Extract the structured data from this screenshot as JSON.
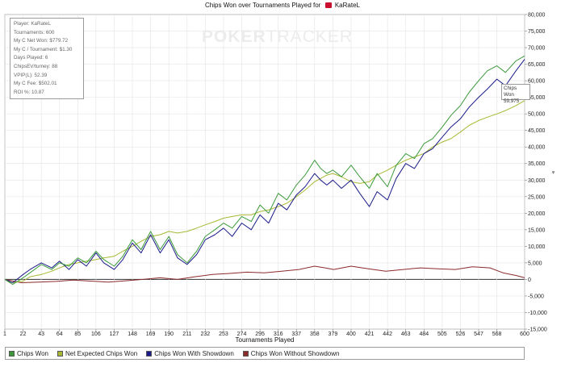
{
  "title": {
    "text": "Chips Won over Tournaments Played for",
    "player": "KaRateL",
    "flag_icon": "canada-flag-icon"
  },
  "watermark": {
    "part1": "POKER",
    "part2": "TRACKER"
  },
  "info_box": [
    "Player: KaRateL",
    "Tournaments: 600",
    "My C Net Won: $779.72",
    "My C / Tournament: $1.30",
    "Days Played: 6",
    "ChipsEV/turney: 88",
    "VPIP(L): 52.39",
    "My C Fee: $502.01",
    "ROI %: 10.87"
  ],
  "tooltip": {
    "series": "Chips Won",
    "value": "59,975"
  },
  "chart_data": {
    "type": "line",
    "title": "Chips Won over Tournaments Played for KaRateL",
    "xlabel": "Tournaments Played",
    "ylabel": "",
    "xlim": [
      1,
      600
    ],
    "ylim": [
      -15000,
      80000
    ],
    "grid": true,
    "legend_position": "bottom",
    "x_ticks": [
      1,
      22,
      43,
      64,
      85,
      106,
      127,
      148,
      169,
      190,
      211,
      232,
      253,
      274,
      295,
      316,
      337,
      358,
      379,
      400,
      421,
      442,
      463,
      484,
      505,
      526,
      547,
      568,
      600
    ],
    "y_ticks": [
      -15000,
      -10000,
      -5000,
      0,
      5000,
      10000,
      15000,
      20000,
      25000,
      30000,
      35000,
      40000,
      45000,
      50000,
      55000,
      60000,
      65000,
      70000,
      75000,
      80000
    ],
    "y_tick_labels": [
      "-15,000",
      "-10,000",
      "-5,000",
      "0",
      "5,000",
      "10,000",
      "15,000",
      "20,000",
      "25,000",
      "30,000",
      "35,000",
      "40,000",
      "45,000",
      "50,000",
      "55,000",
      "60,000",
      "65,000",
      "70,000",
      "75,000",
      "80,000"
    ],
    "series": [
      {
        "name": "Chips Won",
        "color": "#3a9a3a",
        "x": [
          1,
          10,
          22,
          30,
          43,
          55,
          64,
          75,
          85,
          95,
          106,
          115,
          127,
          137,
          148,
          158,
          169,
          180,
          190,
          200,
          211,
          222,
          232,
          243,
          253,
          263,
          274,
          285,
          295,
          305,
          316,
          326,
          337,
          347,
          358,
          365,
          372,
          379,
          389,
          400,
          410,
          421,
          430,
          442,
          452,
          463,
          473,
          484,
          494,
          505,
          515,
          526,
          536,
          547,
          557,
          568,
          578,
          590,
          600
        ],
        "y": [
          0,
          -1500,
          500,
          2000,
          4500,
          3000,
          5000,
          4000,
          6500,
          5000,
          8500,
          6000,
          4000,
          7000,
          12000,
          9000,
          14500,
          9000,
          13000,
          7500,
          5000,
          8500,
          13000,
          15000,
          17000,
          15500,
          19000,
          17500,
          22500,
          20000,
          26000,
          24000,
          28500,
          31500,
          36000,
          33500,
          32000,
          33000,
          31000,
          34500,
          31000,
          27500,
          32000,
          28000,
          34500,
          38000,
          36500,
          41000,
          42500,
          46000,
          49500,
          52500,
          56500,
          60000,
          63000,
          64500,
          62500,
          66000,
          67500
        ]
      },
      {
        "name": "Net Expected Chips Won",
        "color": "#a8b832",
        "x": [
          1,
          10,
          22,
          30,
          43,
          55,
          64,
          75,
          85,
          95,
          106,
          115,
          127,
          137,
          148,
          158,
          169,
          180,
          190,
          200,
          211,
          222,
          232,
          243,
          253,
          263,
          274,
          285,
          295,
          305,
          316,
          326,
          337,
          347,
          358,
          365,
          372,
          379,
          389,
          400,
          410,
          421,
          430,
          442,
          452,
          463,
          473,
          484,
          494,
          505,
          515,
          526,
          536,
          547,
          557,
          568,
          578,
          590,
          600
        ],
        "y": [
          0,
          -1000,
          -500,
          800,
          1500,
          2500,
          3500,
          4500,
          5000,
          5500,
          6000,
          6500,
          7000,
          8500,
          10000,
          11500,
          13000,
          13500,
          14500,
          14000,
          14500,
          15500,
          16500,
          17500,
          18500,
          19000,
          19500,
          19500,
          20500,
          21000,
          22000,
          23000,
          25000,
          27000,
          29500,
          30500,
          31500,
          32000,
          31000,
          29500,
          29000,
          29500,
          31500,
          33000,
          34500,
          36000,
          37000,
          38000,
          40000,
          41500,
          42500,
          44500,
          46500,
          48000,
          49000,
          50000,
          51000,
          52500,
          54000
        ]
      },
      {
        "name": "Chips Won With Showdown",
        "color": "#1a1a8a",
        "x": [
          1,
          10,
          22,
          30,
          43,
          55,
          64,
          75,
          85,
          95,
          106,
          115,
          127,
          137,
          148,
          158,
          169,
          180,
          190,
          200,
          211,
          222,
          232,
          243,
          253,
          263,
          274,
          285,
          295,
          305,
          316,
          326,
          337,
          347,
          358,
          365,
          372,
          379,
          389,
          400,
          410,
          421,
          430,
          442,
          452,
          463,
          473,
          484,
          494,
          505,
          515,
          526,
          536,
          547,
          557,
          568,
          578,
          590,
          600
        ],
        "y": [
          0,
          -1000,
          1500,
          3000,
          5000,
          3500,
          5500,
          3000,
          6000,
          4000,
          8000,
          5000,
          3000,
          6000,
          11000,
          8000,
          13500,
          8000,
          12000,
          6500,
          4500,
          7500,
          12000,
          13500,
          15500,
          13000,
          17000,
          15000,
          19500,
          17000,
          23000,
          21000,
          25500,
          28000,
          32000,
          30000,
          28500,
          30000,
          27500,
          30000,
          26000,
          22000,
          26500,
          24000,
          30500,
          35000,
          33500,
          38000,
          39500,
          43000,
          46000,
          48500,
          52000,
          55000,
          57500,
          60500,
          58500,
          63000,
          66500
        ]
      },
      {
        "name": "Chips Won Without Showdown",
        "color": "#8c2a2a",
        "x": [
          1,
          20,
          40,
          60,
          80,
          100,
          120,
          140,
          160,
          180,
          200,
          220,
          240,
          260,
          280,
          300,
          320,
          340,
          358,
          370,
          380,
          400,
          420,
          440,
          460,
          480,
          500,
          520,
          540,
          560,
          575,
          590,
          600
        ],
        "y": [
          0,
          -1000,
          -800,
          -600,
          -200,
          -500,
          -800,
          -400,
          0,
          500,
          0,
          800,
          1500,
          1800,
          2200,
          2000,
          2500,
          3000,
          4000,
          3500,
          3000,
          4000,
          3200,
          2500,
          3000,
          3500,
          3200,
          3000,
          3800,
          3500,
          2000,
          1200,
          500
        ]
      }
    ]
  }
}
